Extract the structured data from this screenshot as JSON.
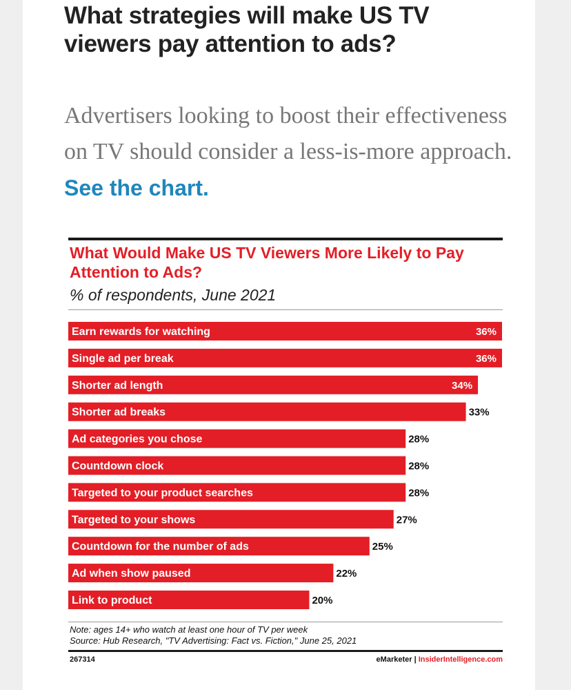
{
  "article": {
    "headline": "What strategies will make US TV viewers pay attention to ads?",
    "dek": "Advertisers looking to boost their effectiveness on TV should consider a less-is-more approach.",
    "link_text": "See the chart."
  },
  "colors": {
    "bar": "#e31e26",
    "link": "#1f86bd"
  },
  "chart_data": {
    "type": "bar",
    "orientation": "horizontal",
    "title": "What Would Make US TV Viewers More Likely to Pay Attention to Ads?",
    "subtitle": "% of respondents, June 2021",
    "categories": [
      "Earn rewards for watching",
      "Single ad per break",
      "Shorter ad length",
      "Shorter ad breaks",
      "Ad categories you chose",
      "Countdown clock",
      "Targeted to your product searches",
      "Targeted to your shows",
      "Countdown for the number of ads",
      "Ad when show paused",
      "Link to product"
    ],
    "values": [
      36,
      36,
      34,
      33,
      28,
      28,
      28,
      27,
      25,
      22,
      20
    ],
    "value_labels": [
      "36%",
      "36%",
      "34%",
      "33%",
      "28%",
      "28%",
      "28%",
      "27%",
      "25%",
      "22%",
      "20%"
    ],
    "note": "Note: ages 14+ who watch at least one hour of TV per week",
    "source": "Source: Hub Research, \"TV Advertising: Fact vs. Fiction,\" June 25, 2021",
    "chart_id": "267314",
    "brand_left": "eMarketer",
    "brand_sep": "|",
    "brand_right": "InsiderIntelligence.com"
  }
}
